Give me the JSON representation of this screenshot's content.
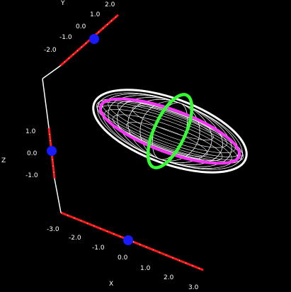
{
  "colors": {
    "background": "#000000",
    "axis_line": "#ffffff",
    "axis_segment": "#ff1a1a",
    "marker": "#1a1aff",
    "wireframe": "#ffffff",
    "ring_horizontal": "#ff33ff",
    "ring_vertical": "#33ff33"
  },
  "axes": {
    "y": {
      "name": "Y",
      "ticks": [
        "2.0",
        "1.0",
        "0.0",
        "-1.0",
        "-2.0"
      ]
    },
    "z": {
      "name": "Z",
      "ticks": [
        "1.0",
        "0.0",
        "-1.0"
      ]
    },
    "x": {
      "name": "X",
      "ticks": [
        "-3.0",
        "-2.0",
        "-1.0",
        "0.0",
        "1.0",
        "2.0",
        "3.0"
      ]
    }
  }
}
